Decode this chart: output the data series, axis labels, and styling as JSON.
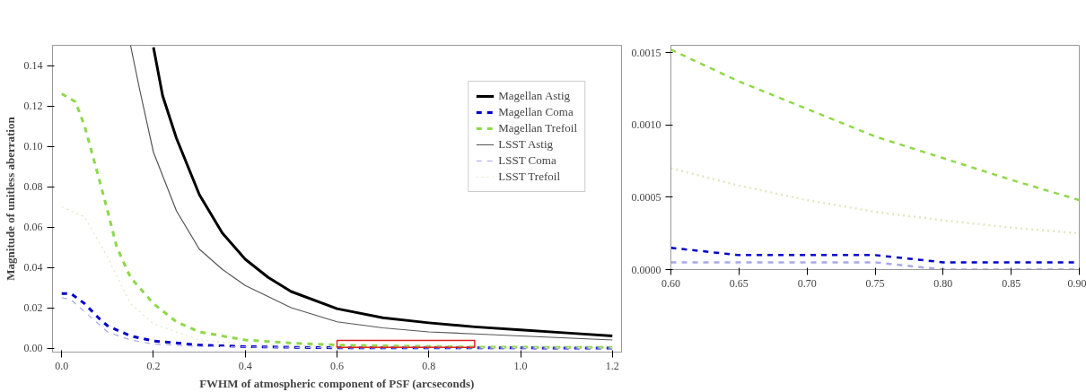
{
  "chart_data": [
    {
      "type": "line",
      "xlabel": "FWHM of atmospheric component of PSF (arcseconds)",
      "ylabel": "Magnitude of unitless aberration",
      "xlim": [
        -0.02,
        1.22
      ],
      "ylim": [
        -0.002,
        0.15
      ],
      "xticks": [
        {
          "value": 0,
          "label": "0.0"
        },
        {
          "value": 0.2,
          "label": "0.2"
        },
        {
          "value": 0.4,
          "label": "0.4"
        },
        {
          "value": 0.6,
          "label": "0.6"
        },
        {
          "value": 0.8,
          "label": "0.8"
        },
        {
          "value": 1.0,
          "label": "1.0"
        },
        {
          "value": 1.2,
          "label": "1.2"
        }
      ],
      "yticks": [
        {
          "value": 0,
          "label": "0.00"
        },
        {
          "value": 0.02,
          "label": "0.02"
        },
        {
          "value": 0.04,
          "label": "0.04"
        },
        {
          "value": 0.06,
          "label": "0.06"
        },
        {
          "value": 0.08,
          "label": "0.08"
        },
        {
          "value": 0.1,
          "label": "0.10"
        },
        {
          "value": 0.12,
          "label": "0.12"
        },
        {
          "value": 0.14,
          "label": "0.14"
        }
      ],
      "grid": false,
      "legend": "top right",
      "marker": "none",
      "series": [
        {
          "name": "Magellan Astig",
          "color": "#000000",
          "line_style": "solid",
          "x": [
            0.2,
            0.22,
            0.25,
            0.3,
            0.35,
            0.4,
            0.45,
            0.5,
            0.6,
            0.7,
            0.8,
            0.9,
            1.0,
            1.1,
            1.2
          ],
          "values": [
            0.149,
            0.125,
            0.104,
            0.076,
            0.057,
            0.044,
            0.035,
            0.028,
            0.0195,
            0.015,
            0.0125,
            0.0105,
            0.009,
            0.0075,
            0.006
          ]
        },
        {
          "name": "Magellan Coma",
          "color": "#0000cc",
          "line_style": "dashed",
          "x": [
            0,
            0.02,
            0.05,
            0.08,
            0.1,
            0.15,
            0.2,
            0.3,
            0.4,
            0.5,
            0.6,
            0.7,
            0.8,
            0.9,
            1.2
          ],
          "values": [
            0.027,
            0.027,
            0.022,
            0.015,
            0.011,
            0.006,
            0.0035,
            0.0015,
            0.0007,
            0.0004,
            0.0001,
            0.0001,
            0.0001,
            0.0001,
            0
          ]
        },
        {
          "name": "Magellan Trefoil",
          "color": "#8fd84a",
          "line_style": "dashed",
          "x": [
            0,
            0.03,
            0.05,
            0.08,
            0.1,
            0.12,
            0.15,
            0.2,
            0.25,
            0.3,
            0.4,
            0.5,
            0.6,
            0.7,
            0.8,
            0.9,
            1.0,
            1.2
          ],
          "values": [
            0.126,
            0.122,
            0.11,
            0.085,
            0.068,
            0.05,
            0.035,
            0.022,
            0.013,
            0.008,
            0.004,
            0.0025,
            0.0015,
            0.0011,
            0.0008,
            0.0005,
            0.0004,
            0.0003
          ]
        },
        {
          "name": "LSST Astig",
          "color": "#555555",
          "line_style": "solid",
          "x": [
            0.15,
            0.17,
            0.2,
            0.25,
            0.3,
            0.35,
            0.4,
            0.5,
            0.6,
            0.7,
            0.8,
            0.9,
            1.0,
            1.1,
            1.2
          ],
          "values": [
            0.15,
            0.128,
            0.097,
            0.068,
            0.049,
            0.039,
            0.031,
            0.02,
            0.013,
            0.01,
            0.008,
            0.007,
            0.006,
            0.005,
            0.004
          ]
        },
        {
          "name": "LSST Coma",
          "color": "#a8a8e8",
          "line_style": "dashed",
          "x": [
            0,
            0.02,
            0.05,
            0.1,
            0.15,
            0.2,
            0.3,
            0.6,
            0.9,
            1.2
          ],
          "values": [
            0.025,
            0.024,
            0.018,
            0.008,
            0.004,
            0.002,
            0.0008,
            0.0001,
            0,
            0
          ]
        },
        {
          "name": "LSST Trefoil",
          "color": "#dde8c0",
          "line_style": "dotted",
          "x": [
            0,
            0.05,
            0.1,
            0.15,
            0.2,
            0.3,
            0.4,
            0.6,
            0.7,
            0.8,
            0.9,
            1.2
          ],
          "values": [
            0.07,
            0.065,
            0.045,
            0.022,
            0.012,
            0.004,
            0.002,
            0.0007,
            0.0005,
            0.0004,
            0.0003,
            0.0001
          ]
        }
      ]
    },
    {
      "type": "line",
      "xlim": [
        0.6,
        0.9
      ],
      "ylim": [
        0,
        0.00155
      ],
      "xticks": [
        {
          "value": 0.6,
          "label": "0.60"
        },
        {
          "value": 0.65,
          "label": "0.65"
        },
        {
          "value": 0.7,
          "label": "0.70"
        },
        {
          "value": 0.75,
          "label": "0.75"
        },
        {
          "value": 0.8,
          "label": "0.80"
        },
        {
          "value": 0.85,
          "label": "0.85"
        },
        {
          "value": 0.9,
          "label": "0.90"
        }
      ],
      "yticks": [
        {
          "value": 0,
          "label": "0.0000"
        },
        {
          "value": 0.0005,
          "label": "0.0005"
        },
        {
          "value": 0.001,
          "label": "0.0010"
        },
        {
          "value": 0.0015,
          "label": "0.0015"
        }
      ],
      "grid": false,
      "legend": false,
      "marker": "none",
      "series": [
        {
          "color": "#8fd84a",
          "line_style": "dashed",
          "x": [
            0.6,
            0.65,
            0.7,
            0.75,
            0.8,
            0.85,
            0.9
          ],
          "values": [
            0.00152,
            0.0013,
            0.00111,
            0.00092,
            0.00077,
            0.00062,
            0.00048
          ]
        },
        {
          "color": "#dde8c0",
          "line_style": "dotted",
          "x": [
            0.6,
            0.65,
            0.7,
            0.75,
            0.8,
            0.85,
            0.9
          ],
          "values": [
            0.0007,
            0.00058,
            0.00048,
            0.0004,
            0.00034,
            0.00029,
            0.00025
          ]
        },
        {
          "color": "#0000cc",
          "line_style": "dashed",
          "x": [
            0.6,
            0.65,
            0.7,
            0.75,
            0.8,
            0.85,
            0.9
          ],
          "values": [
            0.00015,
            0.0001,
            0.0001,
            0.0001,
            5e-05,
            5e-05,
            5e-05
          ]
        },
        {
          "color": "#a8a8e8",
          "line_style": "dashed",
          "x": [
            0.6,
            0.65,
            0.7,
            0.75,
            0.8,
            0.85,
            0.9
          ],
          "values": [
            5e-05,
            5e-05,
            5e-05,
            5e-05,
            0,
            0,
            0
          ]
        }
      ]
    }
  ]
}
